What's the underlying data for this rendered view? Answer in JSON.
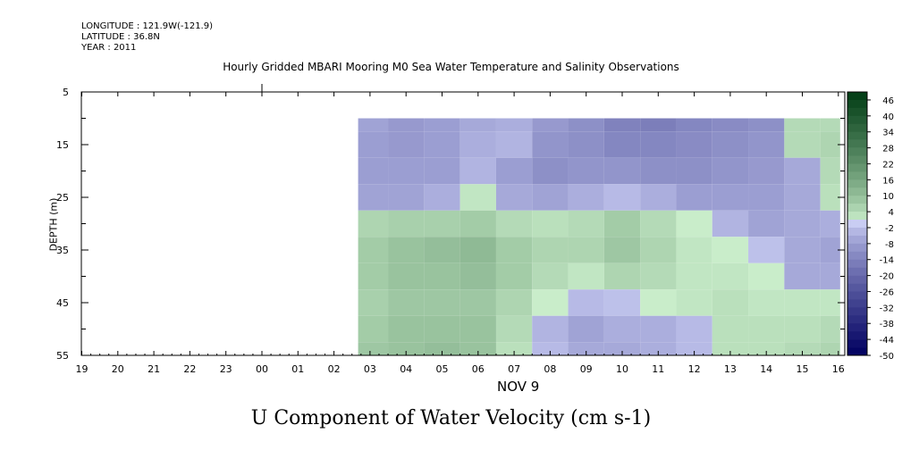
{
  "header": {
    "longitude": "LONGITUDE : 121.9W(-121.9)",
    "latitude": "LATITUDE : 36.8N",
    "year": "YEAR : 2011",
    "title": "Hourly Gridded MBARI Mooring M0 Sea Water Temperature and Salinity Observations"
  },
  "axes": {
    "ylabel": "DEPTH (m)",
    "month_label": "NOV  9"
  },
  "footer": {
    "title": "U Component of Water Velocity (cm s-1)"
  },
  "colors": {
    "positive_ramp": [
      "#d4f7d4",
      "#003c14"
    ],
    "negative_ramp": [
      "#d0d4f8",
      "#000060"
    ]
  },
  "chart_data": {
    "type": "heatmap",
    "title": "Hourly Gridded MBARI Mooring M0 Sea Water Temperature and Salinity Observations",
    "xlabel": "NOV  9",
    "ylabel": "DEPTH (m)",
    "x_tick_labels": [
      "19",
      "20",
      "21",
      "22",
      "23",
      "00",
      "01",
      "02",
      "03",
      "04",
      "05",
      "06",
      "07",
      "08",
      "09",
      "10",
      "11",
      "12",
      "13",
      "14",
      "15",
      "16"
    ],
    "y_tick_labels": [
      "5",
      "15",
      "25",
      "35",
      "45",
      "55"
    ],
    "ylim": [
      55,
      5
    ],
    "y_ticks": [
      5,
      15,
      25,
      35,
      45,
      55
    ],
    "colorbar": {
      "label": "U Component of Water Velocity (cm s-1)",
      "tick_labels": [
        "46",
        "40",
        "34",
        "28",
        "22",
        "16",
        "10",
        "4",
        "-2",
        "-8",
        "-14",
        "-20",
        "-26",
        "-32",
        "-38",
        "-44",
        "-50"
      ],
      "range": [
        -50,
        49
      ]
    },
    "data_extent": {
      "x_start_hour": "02:40",
      "x_end_hour": "16:00",
      "depth_top": 10,
      "depth_bottom": 55
    },
    "depths": [
      10,
      15,
      20,
      25,
      30,
      35,
      40,
      45,
      50,
      55
    ],
    "hours": [
      "03",
      "04",
      "05",
      "06",
      "07",
      "08",
      "09",
      "10",
      "11",
      "12",
      "13",
      "14",
      "15",
      "16"
    ],
    "values": [
      [
        -7,
        -9,
        -8,
        -6,
        -5,
        -9,
        -11,
        -14,
        -15,
        -13,
        -12,
        -11,
        4,
        4
      ],
      [
        -8,
        -9,
        -8,
        -5,
        -4,
        -10,
        -11,
        -13,
        -13,
        -12,
        -11,
        -10,
        4,
        5
      ],
      [
        -8,
        -8,
        -8,
        -4,
        -8,
        -11,
        -10,
        -10,
        -11,
        -11,
        -10,
        -9,
        -6,
        4
      ],
      [
        -7,
        -7,
        -5,
        2,
        -6,
        -7,
        -5,
        -3,
        -5,
        -8,
        -8,
        -8,
        -6,
        3
      ],
      [
        5,
        6,
        6,
        7,
        4,
        3,
        4,
        7,
        4,
        1,
        -4,
        -7,
        -6,
        -5
      ],
      [
        7,
        9,
        10,
        11,
        7,
        5,
        5,
        8,
        5,
        2,
        1,
        -2,
        -6,
        -7
      ],
      [
        7,
        9,
        9,
        10,
        7,
        4,
        2,
        5,
        4,
        2,
        2,
        1,
        -6,
        -6
      ],
      [
        6,
        8,
        8,
        8,
        5,
        1,
        -3,
        -2,
        1,
        2,
        3,
        2,
        2,
        2
      ],
      [
        7,
        9,
        9,
        9,
        4,
        -4,
        -7,
        -5,
        -5,
        -3,
        3,
        3,
        3,
        4
      ],
      [
        8,
        9,
        10,
        9,
        3,
        -3,
        -6,
        -6,
        -5,
        -3,
        3,
        3,
        4,
        5
      ]
    ]
  }
}
